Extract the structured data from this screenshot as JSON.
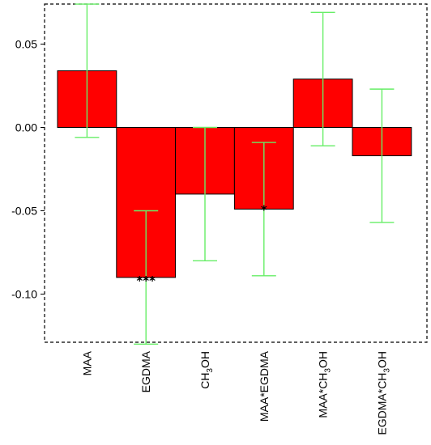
{
  "chart_data": {
    "type": "bar",
    "title": "",
    "xlabel": "",
    "ylabel": "",
    "ylim": [
      -0.13,
      0.075
    ],
    "yticks": [
      -0.1,
      -0.05,
      0.0,
      0.05
    ],
    "ytick_labels": [
      "-0.10",
      "-0.05",
      "0.00",
      "0.05"
    ],
    "categories": [
      "MAA",
      "EGDMA",
      "CH3OH",
      "MAA*EGDMA",
      "MAA*CH3OH",
      "EGDMA*CH3OH"
    ],
    "category_labels": [
      {
        "main": "MAA",
        "sub": "",
        "tail": ""
      },
      {
        "main": "EGDMA",
        "sub": "",
        "tail": ""
      },
      {
        "main": "CH",
        "sub": "3",
        "tail": "OH"
      },
      {
        "main": "MAA*EGDMA",
        "sub": "",
        "tail": ""
      },
      {
        "main": "MAA*CH",
        "sub": "3",
        "tail": "OH"
      },
      {
        "main": "EGDMA*CH",
        "sub": "3",
        "tail": "OH"
      }
    ],
    "values": [
      0.034,
      -0.09,
      -0.04,
      -0.049,
      0.029,
      -0.017
    ],
    "error_low": [
      -0.006,
      -0.13,
      -0.08,
      -0.089,
      -0.011,
      -0.057
    ],
    "error_high": [
      0.074,
      -0.05,
      0.0,
      -0.009,
      0.069,
      0.023
    ],
    "significance": [
      "",
      "***",
      "",
      "*",
      "",
      ""
    ],
    "grid": false,
    "legend": "none",
    "colors": {
      "bar": "#ff0000",
      "bar_edge": "#000000",
      "error_bar": "#66ee66",
      "frame": "#000000"
    }
  }
}
